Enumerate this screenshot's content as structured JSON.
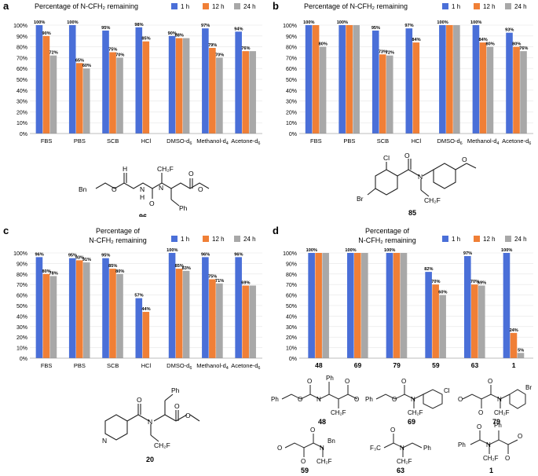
{
  "colors": {
    "h1": "#4a6fd8",
    "h12": "#f07f36",
    "h24": "#a8a8a8"
  },
  "legend_labels": [
    "1 h",
    "12 h",
    "24 h"
  ],
  "chart_data": [
    {
      "panel": "a",
      "type": "bar",
      "title_lines": [
        "Percentage of N-CFH₂ remaining"
      ],
      "ylim": [
        0,
        100
      ],
      "yticks": [
        "0%",
        "10%",
        "20%",
        "30%",
        "40%",
        "50%",
        "60%",
        "70%",
        "80%",
        "90%",
        "100%"
      ],
      "categories": [
        "FBS",
        "PBS",
        "SCB",
        "HCl",
        "DMSO-d6",
        "Methanol-d4",
        "Acetone-d6"
      ],
      "series": [
        {
          "name": "1 h",
          "values": [
            100,
            100,
            95,
            98,
            90,
            97,
            94
          ]
        },
        {
          "name": "12 h",
          "values": [
            90,
            65,
            75,
            85,
            88,
            79,
            76
          ]
        },
        {
          "name": "24 h",
          "values": [
            72,
            60,
            70,
            null,
            88,
            70,
            76
          ]
        }
      ],
      "labels": [
        [
          "100%",
          "90%",
          "72%"
        ],
        [
          "100%",
          "65%",
          "60%"
        ],
        [
          "95%",
          "75%",
          "70%"
        ],
        [
          "98%",
          "85%",
          ""
        ],
        [
          "90%",
          "88%",
          ""
        ],
        [
          "97%",
          "79%",
          "70%"
        ],
        [
          "94%",
          "76%",
          ""
        ]
      ]
    },
    {
      "panel": "b",
      "type": "bar",
      "title_lines": [
        "Percentage of  N-CFH₂ remaining"
      ],
      "ylim": [
        0,
        100
      ],
      "yticks": [
        "0%",
        "10%",
        "20%",
        "30%",
        "40%",
        "50%",
        "60%",
        "70%",
        "80%",
        "90%",
        "100%"
      ],
      "categories": [
        "FBS",
        "PBS",
        "SCB",
        "HCl",
        "DMSO-d6",
        "Methanol-d4",
        "Acetone-d6"
      ],
      "series": [
        {
          "name": "1 h",
          "values": [
            100,
            100,
            95,
            97,
            100,
            100,
            93
          ]
        },
        {
          "name": "12 h",
          "values": [
            100,
            100,
            73,
            84,
            100,
            84,
            80
          ]
        },
        {
          "name": "24 h",
          "values": [
            80,
            100,
            72,
            null,
            100,
            80,
            76
          ]
        }
      ],
      "labels": [
        [
          "100%",
          "",
          "80%"
        ],
        [
          "100%",
          "",
          ""
        ],
        [
          "95%",
          "73%",
          "72%"
        ],
        [
          "97%",
          "84%",
          ""
        ],
        [
          "100%",
          "",
          ""
        ],
        [
          "100%",
          "84%",
          "80%"
        ],
        [
          "93%",
          "80%",
          "76%"
        ]
      ]
    },
    {
      "panel": "c",
      "type": "bar",
      "title_lines": [
        "Percentage of",
        "N-CFH₂ remaining"
      ],
      "ylim": [
        0,
        100
      ],
      "yticks": [
        "0%",
        "10%",
        "20%",
        "30%",
        "40%",
        "50%",
        "60%",
        "70%",
        "80%",
        "90%",
        "100%"
      ],
      "categories": [
        "FBS",
        "PBS",
        "SCB",
        "HCl",
        "DMSO-d6",
        "Methanol-d4",
        "Acetone-d6"
      ],
      "series": [
        {
          "name": "1 h",
          "values": [
            96,
            95,
            95,
            57,
            100,
            96,
            96
          ]
        },
        {
          "name": "12 h",
          "values": [
            80,
            93,
            85,
            44,
            85,
            75,
            69
          ]
        },
        {
          "name": "24 h",
          "values": [
            78,
            91,
            80,
            null,
            83,
            71,
            69
          ]
        }
      ],
      "labels": [
        [
          "96%",
          "80%",
          "78%"
        ],
        [
          "95%",
          "93%",
          "91%"
        ],
        [
          "95%",
          "85%",
          "80%"
        ],
        [
          "57%",
          "44%",
          ""
        ],
        [
          "100%",
          "85%",
          "83%"
        ],
        [
          "96%",
          "75%",
          "71%"
        ],
        [
          "96%",
          "69%",
          ""
        ]
      ]
    },
    {
      "panel": "d",
      "type": "bar",
      "title_lines": [
        "Percentage of",
        "N-CFH₂ remaining"
      ],
      "ylim": [
        0,
        100
      ],
      "yticks": [
        "0%",
        "10%",
        "20%",
        "30%",
        "40%",
        "50%",
        "60%",
        "70%",
        "80%",
        "90%",
        "100%"
      ],
      "categories": [
        "48",
        "69",
        "79",
        "59",
        "63",
        "1"
      ],
      "series": [
        {
          "name": "1 h",
          "values": [
            100,
            100,
            100,
            82,
            97,
            100
          ]
        },
        {
          "name": "12 h",
          "values": [
            100,
            100,
            100,
            70,
            70,
            24
          ]
        },
        {
          "name": "24 h",
          "values": [
            100,
            100,
            100,
            60,
            69,
            5
          ]
        }
      ],
      "labels": [
        [
          "100%",
          "",
          ""
        ],
        [
          "100%",
          "",
          ""
        ],
        [
          "100%",
          "",
          ""
        ],
        [
          "82%",
          "70%",
          "60%"
        ],
        [
          "97%",
          "70%",
          "69%"
        ],
        [
          "100%",
          "24%",
          "5%"
        ]
      ]
    }
  ],
  "compounds": {
    "a": [
      "96"
    ],
    "b": [
      "85"
    ],
    "c": [
      "20"
    ],
    "d": [
      "48",
      "69",
      "79",
      "59",
      "63",
      "1"
    ]
  },
  "structure_text": {
    "a": [
      "Bn",
      "O",
      "N",
      "H",
      "O",
      "N",
      "CH₂F",
      "O",
      "O",
      "Ph"
    ],
    "b": [
      "Cl",
      "O",
      "N",
      "CH₂F",
      "O",
      "Br"
    ],
    "c": [
      "N",
      "O",
      "N",
      "CH₂F",
      "Ph",
      "O",
      "O"
    ],
    "d48": [
      "Ph",
      "O",
      "O",
      "N",
      "CH₂F",
      "Ph",
      "O",
      "O"
    ],
    "d69": [
      "Ph",
      "O",
      "O",
      "N",
      "CH₂F",
      "Cl"
    ],
    "d79": [
      "O",
      "O",
      "O",
      "N",
      "CH₂F",
      "Br"
    ],
    "d59": [
      "O",
      "O",
      "O",
      "N",
      "Bn",
      "CH₂F"
    ],
    "d63": [
      "F₃C",
      "O",
      "N",
      "CH₂F",
      "Ph"
    ],
    "d1": [
      "Ph",
      "O",
      "N",
      "CH₂F",
      "Ph",
      "O",
      "O"
    ]
  }
}
